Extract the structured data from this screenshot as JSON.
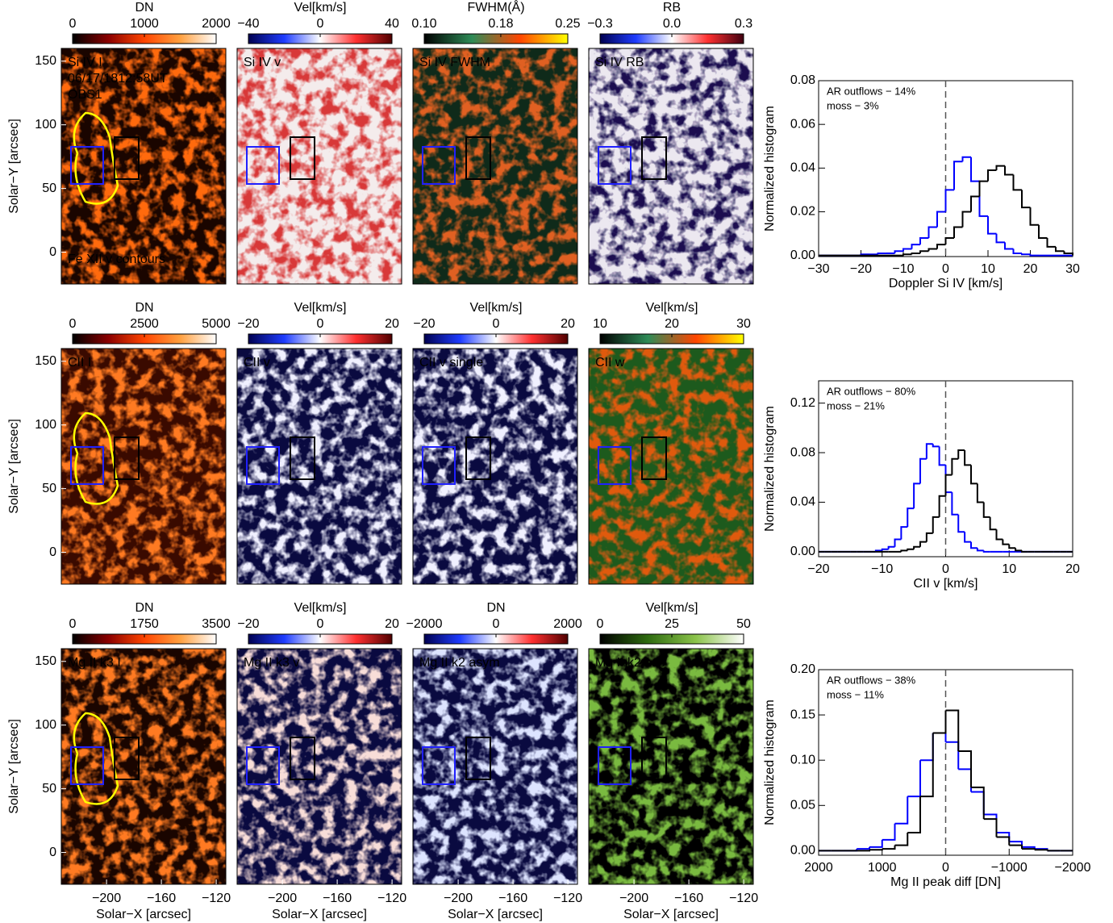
{
  "chart_data": [
    {
      "type": "image",
      "title": "Si IV I",
      "annotations": [
        "06/17/1812:58UT",
        "OBS1",
        "Fe XII v contours"
      ],
      "annotation_colors": [
        "#ffffff",
        "#00e5e5",
        "#ffff00"
      ],
      "colorbar": {
        "label": "DN",
        "lim": [
          0,
          2000
        ],
        "ticks": [
          0,
          1000,
          2000
        ],
        "colors": [
          "#000000",
          "#8b0000",
          "#ff4500",
          "#ffa040",
          "#ffffff"
        ]
      },
      "ylabel": "Solar−Y [arcsec]",
      "ylim": [
        -25,
        160
      ],
      "yticks": [
        0,
        50,
        100,
        150
      ]
    },
    {
      "type": "image",
      "title": "Si IV v",
      "colorbar": {
        "label": "Vel[km/s]",
        "lim": [
          -40,
          40
        ],
        "ticks": [
          {
            "value": -40,
            "label": "−40"
          },
          0,
          40
        ],
        "colors": [
          "#000050",
          "#1e3cff",
          "#ffffff",
          "#ff3030",
          "#500000"
        ]
      }
    },
    {
      "type": "image",
      "title": "Si IV FWHM",
      "colorbar": {
        "label": "FWHM(Å)",
        "lim": [
          0.1,
          0.25
        ],
        "ticks": [
          {
            "value": 0.1,
            "label": "0.10"
          },
          0.18,
          0.25
        ],
        "colors": [
          "#000000",
          "#2e8b57",
          "#ff4500",
          "#ffff00"
        ]
      }
    },
    {
      "type": "image",
      "title": "Si IV RB",
      "colorbar": {
        "label": "RB",
        "lim": [
          -0.3,
          0.3
        ],
        "ticks": [
          {
            "value": -0.3,
            "label": "−0.3"
          },
          {
            "value": 0,
            "label": "0.0"
          },
          0.3
        ],
        "colors": [
          "#000050",
          "#1e3cff",
          "#ffffff",
          "#ff3030",
          "#400010"
        ]
      }
    },
    {
      "type": "histogram",
      "xlabel": "Doppler Si IV [km/s]",
      "ylabel": "Normalized histogram",
      "vline": 0,
      "bins": [
        -30,
        -28,
        -26,
        -24,
        -22,
        -20,
        -18,
        -16,
        -14,
        -12,
        -10,
        -8,
        -6,
        -4,
        -2,
        0,
        2,
        4,
        6,
        8,
        10,
        12,
        14,
        16,
        18,
        20,
        22,
        24,
        26,
        28,
        30
      ],
      "xlim": [
        -30,
        30
      ],
      "xticks": [
        {
          "value": -30,
          "label": "−30"
        },
        {
          "value": -20,
          "label": "−20"
        },
        {
          "value": -10,
          "label": "−10"
        },
        0,
        10,
        20,
        30
      ],
      "ylim": [
        -0.0005,
        0.08
      ],
      "yticks": [
        {
          "value": 0,
          "label": "0.00"
        },
        0.02,
        0.04,
        0.06,
        0.08
      ],
      "series": [
        {
          "name": "AR outflows − 14%",
          "color": "#0000ff",
          "values": [
            0,
            0,
            0,
            0,
            0,
            0.0005,
            0.0005,
            0.001,
            0.001,
            0.002,
            0.003,
            0.005,
            0.008,
            0.013,
            0.02,
            0.03,
            0.043,
            0.045,
            0.034,
            0.018,
            0.01,
            0.006,
            0.003,
            0.001,
            0.0005,
            0,
            0,
            0,
            0,
            0
          ]
        },
        {
          "name": "moss − 3%",
          "color": "#000000",
          "values": [
            0,
            0,
            0,
            0,
            0,
            0,
            0,
            0,
            0,
            0,
            0.0005,
            0.001,
            0.002,
            0.003,
            0.005,
            0.008,
            0.013,
            0.02,
            0.027,
            0.034,
            0.039,
            0.041,
            0.037,
            0.03,
            0.022,
            0.014,
            0.008,
            0.004,
            0.002,
            0.001
          ]
        }
      ]
    },
    {
      "type": "image",
      "title": "CII I",
      "colorbar": {
        "label": "DN",
        "lim": [
          0,
          5000
        ],
        "ticks": [
          0,
          2500,
          5000
        ],
        "colors": [
          "#000000",
          "#8b0000",
          "#ff4500",
          "#ffa040",
          "#ffffff"
        ]
      },
      "ylabel": "Solar−Y [arcsec]",
      "ylim": [
        -25,
        160
      ],
      "yticks": [
        0,
        50,
        100,
        150
      ]
    },
    {
      "type": "image",
      "title": "CII v",
      "colorbar": {
        "label": "Vel[km/s]",
        "lim": [
          -20,
          20
        ],
        "ticks": [
          {
            "value": -20,
            "label": "−20"
          },
          0,
          20
        ],
        "colors": [
          "#000050",
          "#1e3cff",
          "#ffffff",
          "#ff3030",
          "#500000"
        ]
      }
    },
    {
      "type": "image",
      "title": "CII v single",
      "colorbar": {
        "label": "Vel[km/s]",
        "lim": [
          -20,
          20
        ],
        "ticks": [
          {
            "value": -20,
            "label": "−20"
          },
          0,
          20
        ],
        "colors": [
          "#000050",
          "#1e3cff",
          "#ffffff",
          "#ff3030",
          "#500000"
        ]
      }
    },
    {
      "type": "image",
      "title": "CII w",
      "colorbar": {
        "label": "Vel[km/s]",
        "lim": [
          10,
          30
        ],
        "ticks": [
          10,
          20,
          30
        ],
        "colors": [
          "#000000",
          "#2e8b57",
          "#ff4500",
          "#ffff00"
        ]
      }
    },
    {
      "type": "histogram",
      "xlabel": "CII v [km/s]",
      "ylabel": "Normalized histogram",
      "vline": 0,
      "bins": [
        -20,
        -19,
        -18,
        -17,
        -16,
        -15,
        -14,
        -13,
        -12,
        -11,
        -10,
        -9,
        -8,
        -7,
        -6,
        -5,
        -4,
        -3,
        -2,
        -1,
        0,
        1,
        2,
        3,
        4,
        5,
        6,
        7,
        8,
        9,
        10,
        11,
        12,
        13,
        14,
        15,
        16,
        17,
        18,
        19,
        20
      ],
      "xlim": [
        -20,
        20
      ],
      "xticks": [
        {
          "value": -20,
          "label": "−20"
        },
        {
          "value": -10,
          "label": "−10"
        },
        0,
        10,
        20
      ],
      "ylim": [
        -0.004,
        0.138
      ],
      "yticks": [
        {
          "value": 0,
          "label": "0.00"
        },
        0.04,
        0.08,
        0.12
      ],
      "series": [
        {
          "name": "AR outflows − 80%",
          "color": "#0000ff",
          "values": [
            0,
            0,
            0,
            0,
            0,
            0,
            0,
            0,
            0,
            0.001,
            0.002,
            0.004,
            0.01,
            0.02,
            0.035,
            0.055,
            0.075,
            0.087,
            0.085,
            0.07,
            0.048,
            0.03,
            0.016,
            0.008,
            0.003,
            0.001,
            0,
            0,
            0,
            0,
            0,
            0,
            0,
            0,
            0,
            0,
            0,
            0,
            0,
            0
          ]
        },
        {
          "name": "moss − 21%",
          "color": "#000000",
          "values": [
            0,
            0,
            0,
            0,
            0,
            0,
            0,
            0,
            0,
            0,
            0,
            0,
            0,
            0.001,
            0.002,
            0.004,
            0.008,
            0.015,
            0.028,
            0.045,
            0.062,
            0.075,
            0.082,
            0.07,
            0.055,
            0.04,
            0.028,
            0.018,
            0.01,
            0.006,
            0.003,
            0.001,
            0,
            0,
            0,
            0,
            0,
            0,
            0,
            0
          ]
        }
      ]
    },
    {
      "type": "image",
      "title": "Mg II k3 I",
      "colorbar": {
        "label": "DN",
        "lim": [
          0,
          3500
        ],
        "ticks": [
          0,
          1750,
          3500
        ],
        "colors": [
          "#000000",
          "#8b0000",
          "#ff4500",
          "#ffa040",
          "#ffffff"
        ]
      },
      "ylabel": "Solar−Y [arcsec]",
      "ylim": [
        -25,
        160
      ],
      "yticks": [
        0,
        50,
        100,
        150
      ],
      "xlabel": "Solar−X [arcsec]",
      "xlim": [
        -233,
        -113
      ],
      "xticks": [
        {
          "value": -200,
          "label": "−200"
        },
        {
          "value": -160,
          "label": "−160"
        },
        {
          "value": -120,
          "label": "−120"
        }
      ]
    },
    {
      "type": "image",
      "title": "Mg II k3 v",
      "colorbar": {
        "label": "Vel[km/s]",
        "lim": [
          -20,
          20
        ],
        "ticks": [
          {
            "value": -20,
            "label": "−20"
          },
          0,
          20
        ],
        "colors": [
          "#000050",
          "#1e3cff",
          "#ffffff",
          "#ff3030",
          "#500000"
        ]
      },
      "xlabel": "Solar−X [arcsec]",
      "xlim": [
        -233,
        -113
      ],
      "xticks": [
        {
          "value": -200,
          "label": "−200"
        },
        {
          "value": -160,
          "label": "−160"
        },
        {
          "value": -120,
          "label": "−120"
        }
      ]
    },
    {
      "type": "image",
      "title": "Mg II k2 asym",
      "colorbar": {
        "label": "DN",
        "lim": [
          -2000,
          2000
        ],
        "ticks": [
          {
            "value": -2000,
            "label": "−2000"
          },
          0,
          2000
        ],
        "colors": [
          "#000050",
          "#1e3cff",
          "#ffffff",
          "#ff3030",
          "#500000"
        ]
      },
      "xlabel": "Solar−X [arcsec]",
      "xlim": [
        -233,
        -113
      ],
      "xticks": [
        {
          "value": -200,
          "label": "−200"
        },
        {
          "value": -160,
          "label": "−160"
        },
        {
          "value": -120,
          "label": "−120"
        }
      ]
    },
    {
      "type": "image",
      "title": "Mg II k2 sep",
      "colorbar": {
        "label": "Vel[km/s]",
        "lim": [
          0,
          50
        ],
        "ticks": [
          0,
          25,
          50
        ],
        "colors": [
          "#000000",
          "#2e6b10",
          "#8bc34a",
          "#ffffff"
        ]
      },
      "xlabel": "Solar−X [arcsec]",
      "xlim": [
        -233,
        -113
      ],
      "xticks": [
        {
          "value": -200,
          "label": "−200"
        },
        {
          "value": -160,
          "label": "−160"
        },
        {
          "value": -120,
          "label": "−120"
        }
      ]
    },
    {
      "type": "histogram",
      "xlabel": "Mg II peak diff [DN]",
      "ylabel": "Normalized histogram",
      "vline": 0,
      "bins": [
        -2000,
        -1800,
        -1600,
        -1400,
        -1200,
        -1000,
        -800,
        -600,
        -400,
        -200,
        0,
        200,
        400,
        600,
        800,
        1000,
        1200,
        1400,
        1600,
        1800,
        2000
      ],
      "xlim": [
        2000,
        -2000
      ],
      "xticks": [
        2000,
        1000,
        0,
        {
          "value": -1000,
          "label": "−1000"
        },
        {
          "value": -2000,
          "label": "−2000"
        }
      ],
      "ylim": [
        -0.005,
        0.2
      ],
      "yticks": [
        {
          "value": 0,
          "label": "0.00"
        },
        0.05,
        {
          "value": 0.1,
          "label": "0.10"
        },
        0.15,
        {
          "value": 0.2,
          "label": "0.20"
        }
      ],
      "series": [
        {
          "name": "AR outflows − 38%",
          "color": "#0000ff",
          "values": [
            0,
            0,
            0.002,
            0.004,
            0.01,
            0.02,
            0.04,
            0.065,
            0.09,
            0.12,
            0.13,
            0.1,
            0.06,
            0.03,
            0.012,
            0.004,
            0.002,
            0,
            0,
            0
          ]
        },
        {
          "name": "moss − 11%",
          "color": "#000000",
          "values": [
            0,
            0,
            0.001,
            0.002,
            0.006,
            0.015,
            0.035,
            0.07,
            0.11,
            0.155,
            0.13,
            0.06,
            0.02,
            0.006,
            0.002,
            0.001,
            0,
            0,
            0,
            0
          ]
        }
      ]
    }
  ]
}
